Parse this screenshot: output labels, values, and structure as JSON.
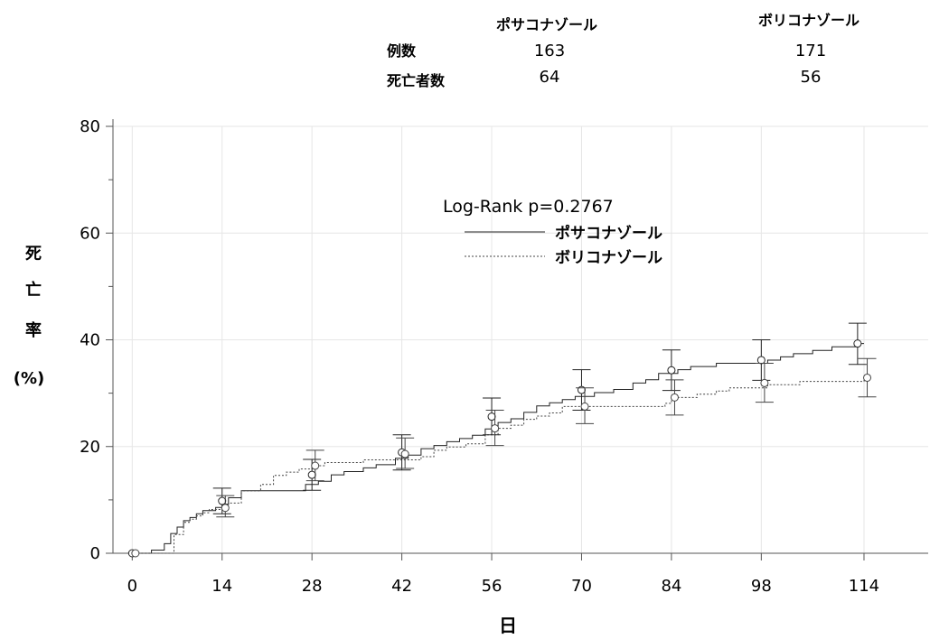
{
  "table": {
    "col1": "ポサコナゾール",
    "col2": "ボリコナゾール",
    "row1_label": "例数",
    "row2_label": "死亡者数",
    "row1": [
      "163",
      "171"
    ],
    "row2": [
      "64",
      "56"
    ]
  },
  "chart_data": {
    "type": "line",
    "xlabel": "日",
    "ylabel_chars": [
      "死",
      "亡",
      "率",
      "(%)"
    ],
    "xlim": [
      -3,
      124
    ],
    "ylim": [
      0,
      80
    ],
    "x_ticks": [
      0,
      14,
      28,
      42,
      56,
      70,
      84,
      98,
      114
    ],
    "y_ticks": [
      0,
      20,
      40,
      60,
      80
    ],
    "annotation": "Log-Rank p=0.2767",
    "legend_position": "top-center",
    "colors": {
      "posa": "#222222",
      "vori": "#444444",
      "grid": "#e6e6e6",
      "axis": "#555555"
    },
    "series": [
      {
        "name": "ポサコナゾール",
        "style": "solid",
        "steps": [
          [
            0,
            0
          ],
          [
            1,
            0
          ],
          [
            3,
            0.6
          ],
          [
            5,
            1.8
          ],
          [
            6,
            3.7
          ],
          [
            7,
            4.9
          ],
          [
            8,
            6.1
          ],
          [
            9,
            6.7
          ],
          [
            10,
            7.4
          ],
          [
            11,
            8.0
          ],
          [
            13,
            8.6
          ],
          [
            14,
            9.2
          ],
          [
            15,
            10.4
          ],
          [
            17,
            11.7
          ],
          [
            24,
            11.7
          ],
          [
            27,
            12.9
          ],
          [
            29,
            13.5
          ],
          [
            31,
            14.7
          ],
          [
            33,
            15.3
          ],
          [
            36,
            16.0
          ],
          [
            38,
            16.6
          ],
          [
            41,
            17.8
          ],
          [
            43,
            18.4
          ],
          [
            45,
            19.6
          ],
          [
            47,
            20.2
          ],
          [
            49,
            20.9
          ],
          [
            51,
            21.5
          ],
          [
            53,
            22.1
          ],
          [
            55,
            23.3
          ],
          [
            57,
            24.5
          ],
          [
            59,
            25.2
          ],
          [
            61,
            26.4
          ],
          [
            63,
            27.6
          ],
          [
            65,
            28.2
          ],
          [
            67,
            28.8
          ],
          [
            69,
            29.4
          ],
          [
            72,
            30.1
          ],
          [
            75,
            30.7
          ],
          [
            78,
            31.9
          ],
          [
            80,
            32.5
          ],
          [
            82,
            33.7
          ],
          [
            85,
            34.4
          ],
          [
            87,
            35.0
          ],
          [
            91,
            35.6
          ],
          [
            97,
            35.6
          ],
          [
            99,
            36.2
          ],
          [
            101,
            36.8
          ],
          [
            103,
            37.4
          ],
          [
            106,
            38.0
          ],
          [
            109,
            38.7
          ],
          [
            113,
            39.3
          ],
          [
            114,
            39.3
          ]
        ]
      },
      {
        "name": "ボリコナゾール",
        "style": "dashed",
        "steps": [
          [
            0,
            0
          ],
          [
            6,
            0
          ],
          [
            6.5,
            3.5
          ],
          [
            8,
            5.8
          ],
          [
            9,
            6.4
          ],
          [
            10,
            7.0
          ],
          [
            11,
            7.6
          ],
          [
            12,
            8.2
          ],
          [
            14,
            8.2
          ],
          [
            15,
            9.4
          ],
          [
            17,
            11.7
          ],
          [
            18,
            11.7
          ],
          [
            20,
            12.9
          ],
          [
            22,
            14.6
          ],
          [
            24,
            15.2
          ],
          [
            26,
            15.8
          ],
          [
            28,
            16.4
          ],
          [
            30,
            17.0
          ],
          [
            36,
            17.5
          ],
          [
            45,
            18.1
          ],
          [
            47,
            19.3
          ],
          [
            49,
            19.9
          ],
          [
            52,
            20.5
          ],
          [
            55,
            22.2
          ],
          [
            57,
            23.4
          ],
          [
            59,
            24.0
          ],
          [
            61,
            25.1
          ],
          [
            63,
            25.7
          ],
          [
            65,
            26.3
          ],
          [
            67,
            27.5
          ],
          [
            81,
            27.5
          ],
          [
            83,
            28.1
          ],
          [
            84,
            29.2
          ],
          [
            86,
            29.2
          ],
          [
            88,
            29.8
          ],
          [
            91,
            30.4
          ],
          [
            93,
            31.0
          ],
          [
            99,
            31.6
          ],
          [
            104,
            32.2
          ],
          [
            114,
            32.7
          ]
        ]
      }
    ],
    "markers": [
      {
        "series": "ポサコナゾール",
        "points": [
          {
            "x": 0,
            "y": 0,
            "lo": 0,
            "hi": 0
          },
          {
            "x": 14,
            "y": 9.8,
            "lo": 7.4,
            "hi": 12.2
          },
          {
            "x": 28,
            "y": 14.7,
            "lo": 11.8,
            "hi": 17.6
          },
          {
            "x": 42,
            "y": 18.9,
            "lo": 15.6,
            "hi": 22.2
          },
          {
            "x": 56,
            "y": 25.6,
            "lo": 22.2,
            "hi": 29.1
          },
          {
            "x": 70,
            "y": 30.6,
            "lo": 26.8,
            "hi": 34.4
          },
          {
            "x": 84,
            "y": 34.3,
            "lo": 30.5,
            "hi": 38.1
          },
          {
            "x": 98,
            "y": 36.2,
            "lo": 32.4,
            "hi": 40.0
          },
          {
            "x": 113,
            "y": 39.3,
            "lo": 35.4,
            "hi": 43.1
          }
        ]
      },
      {
        "series": "ボリコナゾール",
        "points": [
          {
            "x": 0.5,
            "y": 0,
            "lo": 0,
            "hi": 0
          },
          {
            "x": 14.5,
            "y": 8.5,
            "lo": 6.8,
            "hi": 10.8
          },
          {
            "x": 28.5,
            "y": 16.4,
            "lo": 13.6,
            "hi": 19.3
          },
          {
            "x": 42.5,
            "y": 18.6,
            "lo": 15.9,
            "hi": 21.6
          },
          {
            "x": 56.5,
            "y": 23.4,
            "lo": 20.2,
            "hi": 26.8
          },
          {
            "x": 70.5,
            "y": 27.5,
            "lo": 24.3,
            "hi": 31.0
          },
          {
            "x": 84.5,
            "y": 29.2,
            "lo": 25.9,
            "hi": 32.5
          },
          {
            "x": 98.5,
            "y": 31.9,
            "lo": 28.3,
            "hi": 35.6
          },
          {
            "x": 114.5,
            "y": 32.9,
            "lo": 29.3,
            "hi": 36.5
          }
        ]
      }
    ]
  }
}
